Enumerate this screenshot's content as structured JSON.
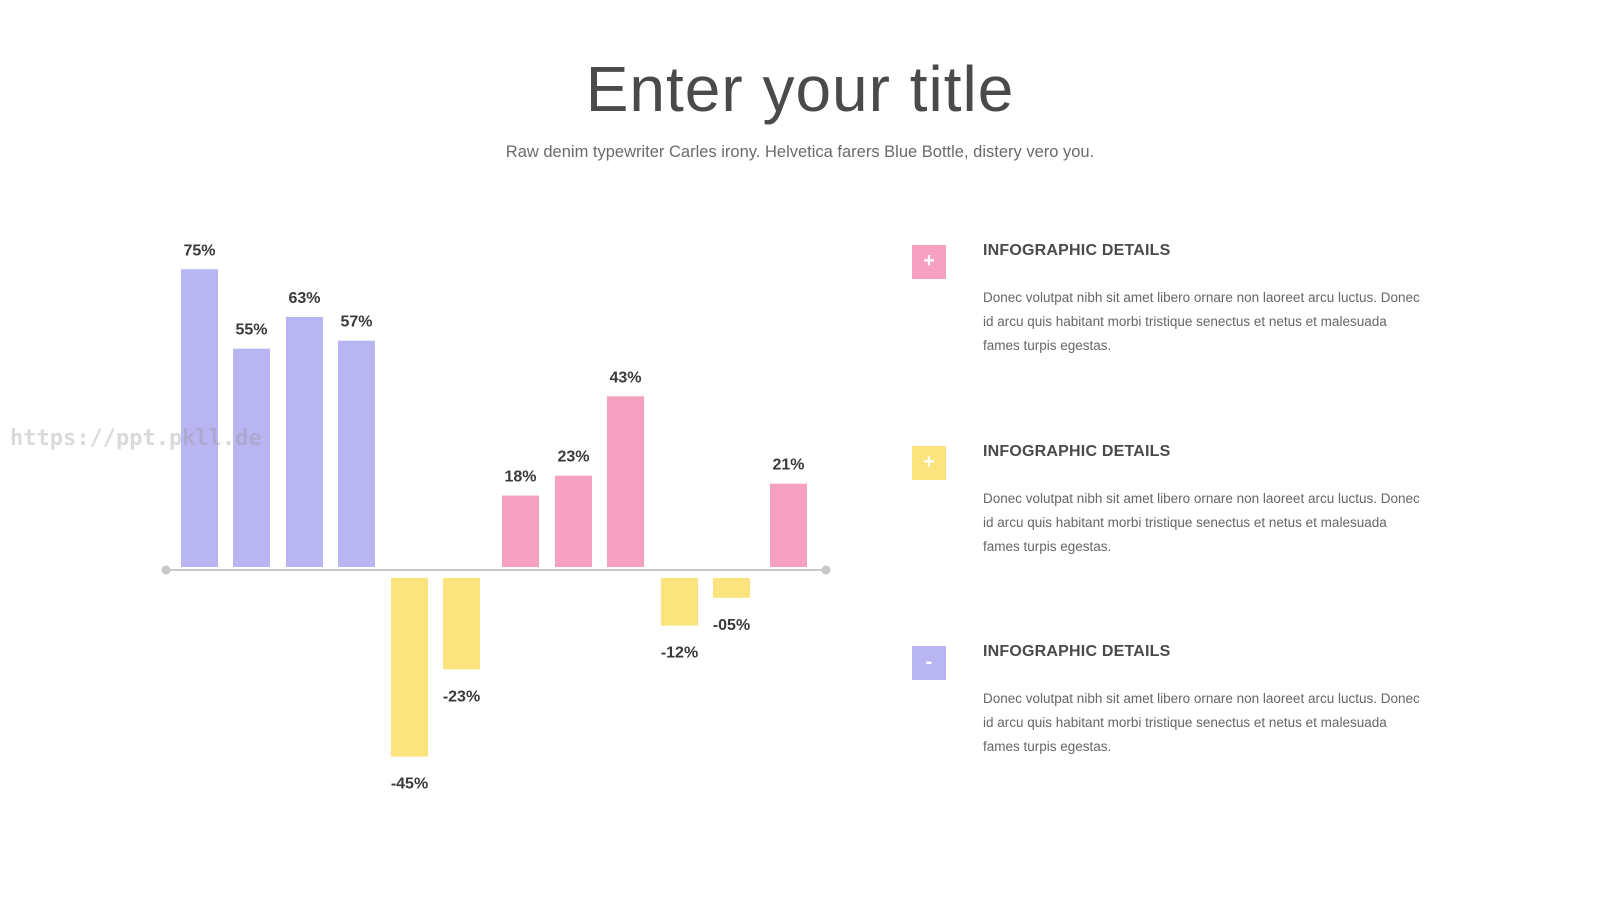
{
  "header": {
    "title": "Enter your title",
    "subtitle": "Raw denim typewriter Carles irony. Helvetica farers Blue Bottle, distery vero you."
  },
  "watermark": "https://ppt.pkll.de",
  "colors": {
    "purple": "#b9b5f3",
    "yellow": "#fbe47d",
    "pink": "#f6a0c1",
    "axis": "#c8c8c8"
  },
  "chart_data": {
    "type": "bar",
    "categories": [
      "",
      "",
      "",
      "",
      "",
      "",
      "",
      "",
      "",
      "",
      "",
      ""
    ],
    "values": [
      75,
      55,
      63,
      57,
      -45,
      -23,
      18,
      23,
      43,
      -12,
      -5,
      21
    ],
    "data_labels": [
      "75%",
      "55%",
      "63%",
      "57%",
      "-45%",
      "-23%",
      "18%",
      "23%",
      "43%",
      "-12%",
      "-05%",
      "21%"
    ],
    "bar_colors": [
      "purple",
      "purple",
      "purple",
      "purple",
      "yellow",
      "yellow",
      "pink",
      "pink",
      "pink",
      "yellow",
      "yellow",
      "pink"
    ],
    "title": "",
    "xlabel": "",
    "ylabel": "",
    "ylim": [
      -45,
      75
    ],
    "grid": false,
    "legend": "none"
  },
  "details": [
    {
      "icon": "+",
      "icon_name": "plus-icon",
      "color": "#f6a0c1",
      "heading": "INFOGRAPHIC DETAILS",
      "body": "Donec volutpat nibh sit amet libero ornare non laoreet arcu luctus. Donec id arcu quis habitant morbi tristique senectus et netus et malesuada fames turpis egestas."
    },
    {
      "icon": "+",
      "icon_name": "plus-icon",
      "color": "#fbe47d",
      "heading": "INFOGRAPHIC DETAILS",
      "body": "Donec volutpat nibh sit amet libero ornare non laoreet arcu luctus. Donec id arcu quis habitant morbi tristique senectus et netus et malesuada fames turpis egestas."
    },
    {
      "icon": "-",
      "icon_name": "minus-icon",
      "color": "#b9b5f3",
      "heading": "INFOGRAPHIC DETAILS",
      "body": "Donec volutpat nibh sit amet libero ornare non laoreet arcu luctus. Donec id arcu quis habitant morbi tristique senectus et netus et malesuada fames turpis egestas."
    }
  ]
}
